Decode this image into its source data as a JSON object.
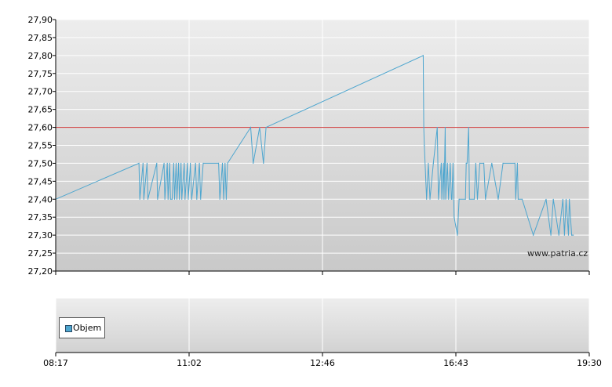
{
  "chart_data": [
    {
      "type": "line",
      "title": "",
      "xlabel": "",
      "ylabel": "",
      "ylim": [
        27.2,
        27.9
      ],
      "y_ticks": [
        "27,90",
        "27,85",
        "27,80",
        "27,75",
        "27,70",
        "27,65",
        "27,60",
        "27,55",
        "27,50",
        "27,45",
        "27,40",
        "27,35",
        "27,30",
        "27,25",
        "27,20"
      ],
      "x_ticks": [
        "08:17",
        "11:02",
        "12:46",
        "16:43",
        "19:30"
      ],
      "x_tick_times": [
        "08:17",
        "11:02",
        "12:46",
        "16:43",
        "19:30"
      ],
      "grid": true,
      "reference_line": {
        "value": 27.6,
        "color": "#cc3333"
      },
      "series": [
        {
          "name": "",
          "color": "#4ea6cf",
          "points": [
            [
              "08:17",
              27.4
            ],
            [
              "10:00",
              27.5
            ],
            [
              "10:01",
              27.4
            ],
            [
              "10:05",
              27.5
            ],
            [
              "10:06",
              27.4
            ],
            [
              "10:10",
              27.5
            ],
            [
              "10:11",
              27.4
            ],
            [
              "10:22",
              27.5
            ],
            [
              "10:23",
              27.4
            ],
            [
              "10:31",
              27.5
            ],
            [
              "10:32",
              27.4
            ],
            [
              "10:35",
              27.5
            ],
            [
              "10:36",
              27.4
            ],
            [
              "10:38",
              27.5
            ],
            [
              "10:39",
              27.4
            ],
            [
              "10:41",
              27.4
            ],
            [
              "10:43",
              27.5
            ],
            [
              "10:44",
              27.4
            ],
            [
              "10:46",
              27.5
            ],
            [
              "10:47",
              27.4
            ],
            [
              "10:49",
              27.5
            ],
            [
              "10:50",
              27.4
            ],
            [
              "10:52",
              27.5
            ],
            [
              "10:53",
              27.4
            ],
            [
              "10:56",
              27.5
            ],
            [
              "10:57",
              27.4
            ],
            [
              "11:00",
              27.5
            ],
            [
              "11:01",
              27.4
            ],
            [
              "11:03",
              27.5
            ],
            [
              "11:04",
              27.4
            ],
            [
              "11:07",
              27.5
            ],
            [
              "11:08",
              27.4
            ],
            [
              "11:10",
              27.5
            ],
            [
              "11:11",
              27.4
            ],
            [
              "11:13",
              27.5
            ],
            [
              "11:25",
              27.5
            ],
            [
              "11:26",
              27.4
            ],
            [
              "11:28",
              27.5
            ],
            [
              "11:29",
              27.4
            ],
            [
              "11:30",
              27.5
            ],
            [
              "11:31",
              27.4
            ],
            [
              "11:32",
              27.5
            ],
            [
              "11:50",
              27.6
            ],
            [
              "11:52",
              27.5
            ],
            [
              "11:57",
              27.6
            ],
            [
              "12:00",
              27.5
            ],
            [
              "12:02",
              27.6
            ],
            [
              "15:45",
              27.8
            ],
            [
              "15:46",
              27.6
            ],
            [
              "15:47",
              27.55
            ],
            [
              "15:51",
              27.4
            ],
            [
              "15:54",
              27.5
            ],
            [
              "15:57",
              27.4
            ],
            [
              "16:03",
              27.5
            ],
            [
              "16:10",
              27.6
            ],
            [
              "16:12",
              27.4
            ],
            [
              "16:17",
              27.5
            ],
            [
              "16:18",
              27.4
            ],
            [
              "16:21",
              27.5
            ],
            [
              "16:22",
              27.4
            ],
            [
              "16:24",
              27.6
            ],
            [
              "16:25",
              27.4
            ],
            [
              "16:28",
              27.5
            ],
            [
              "16:30",
              27.4
            ],
            [
              "16:33",
              27.5
            ],
            [
              "16:35",
              27.4
            ],
            [
              "16:36",
              27.4
            ],
            [
              "16:38",
              27.5
            ],
            [
              "16:40",
              27.35
            ],
            [
              "16:45",
              27.3
            ],
            [
              "16:47",
              27.4
            ],
            [
              "16:55",
              27.4
            ],
            [
              "16:56",
              27.5
            ],
            [
              "16:57",
              27.5
            ],
            [
              "16:59",
              27.6
            ],
            [
              "17:00",
              27.4
            ],
            [
              "17:06",
              27.4
            ],
            [
              "17:08",
              27.5
            ],
            [
              "17:10",
              27.4
            ],
            [
              "17:13",
              27.5
            ],
            [
              "17:18",
              27.5
            ],
            [
              "17:20",
              27.4
            ],
            [
              "17:28",
              27.5
            ],
            [
              "17:36",
              27.4
            ],
            [
              "17:42",
              27.5
            ],
            [
              "17:57",
              27.5
            ],
            [
              "17:58",
              27.4
            ],
            [
              "18:00",
              27.5
            ],
            [
              "18:01",
              27.4
            ],
            [
              "18:06",
              27.4
            ],
            [
              "18:20",
              27.3
            ],
            [
              "18:36",
              27.4
            ],
            [
              "18:42",
              27.3
            ],
            [
              "18:45",
              27.4
            ],
            [
              "18:52",
              27.3
            ],
            [
              "18:57",
              27.4
            ],
            [
              "18:59",
              27.3
            ],
            [
              "19:01",
              27.4
            ],
            [
              "19:04",
              27.3
            ],
            [
              "19:05",
              27.4
            ],
            [
              "19:08",
              27.3
            ],
            [
              "19:10",
              27.3
            ]
          ]
        }
      ]
    },
    {
      "type": "bar",
      "title": "",
      "legend": [
        {
          "label": "Objem",
          "color": "#4ea6cf"
        }
      ],
      "x_ticks": [
        "08:17",
        "11:02",
        "12:46",
        "16:43",
        "19:30"
      ],
      "values": []
    }
  ],
  "watermark": "www.patria.cz"
}
